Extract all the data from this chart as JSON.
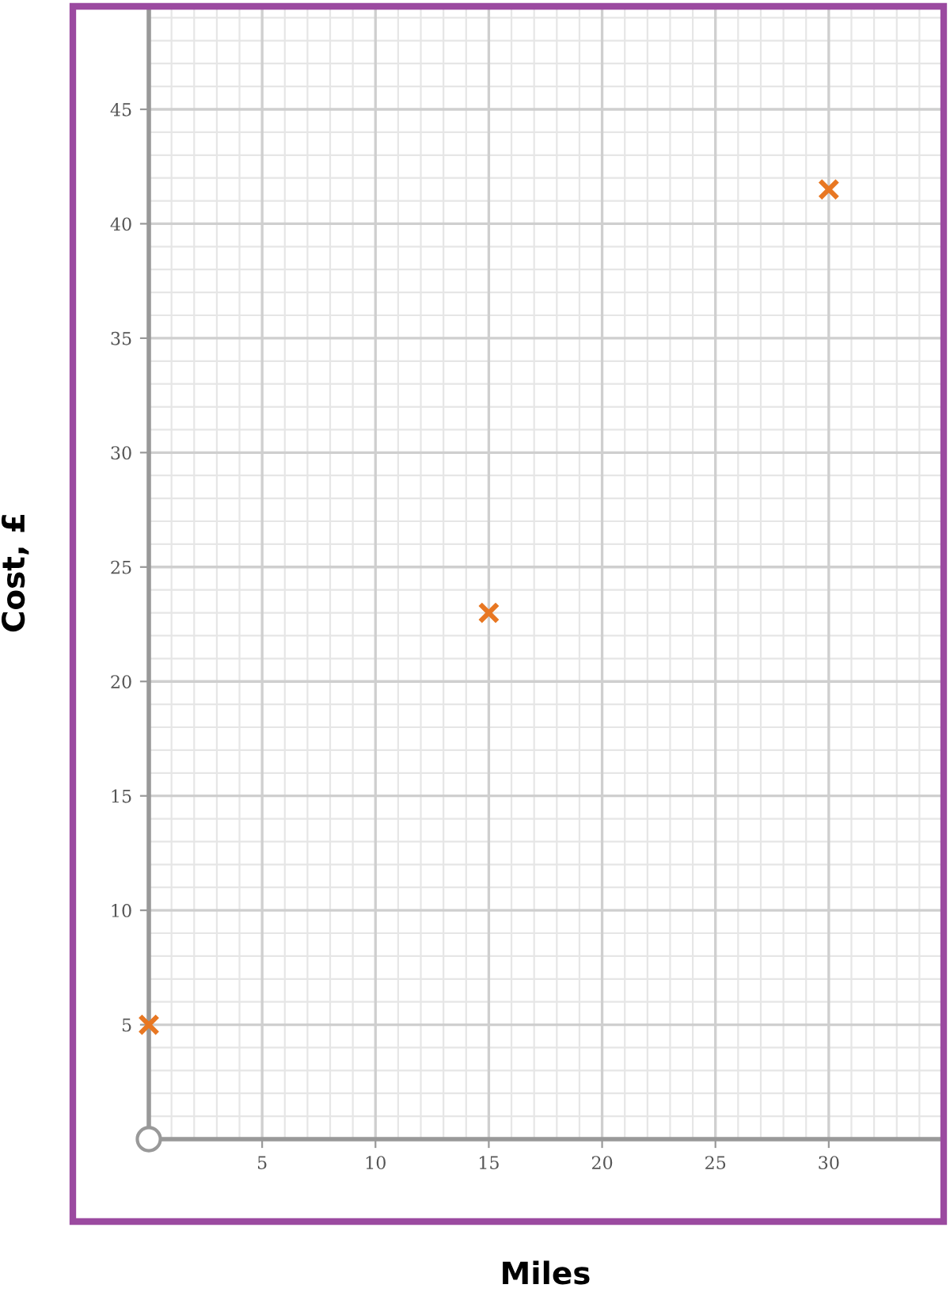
{
  "chart_data": {
    "type": "scatter",
    "xlabel": "Miles",
    "ylabel": "Cost, £",
    "x": [
      0,
      15,
      30
    ],
    "values": [
      5,
      23,
      41.5
    ],
    "color": "#e87722",
    "marker": "cross",
    "xlim": [
      0,
      35
    ],
    "ylim": [
      0,
      49.5
    ],
    "xticks": [
      {
        "value": 0,
        "label": null
      },
      5,
      10,
      15,
      20,
      25,
      30
    ],
    "yticks": [
      {
        "value": 0,
        "label": null
      },
      5,
      10,
      15,
      20,
      25,
      30,
      35,
      40,
      45
    ],
    "grid": true
  }
}
